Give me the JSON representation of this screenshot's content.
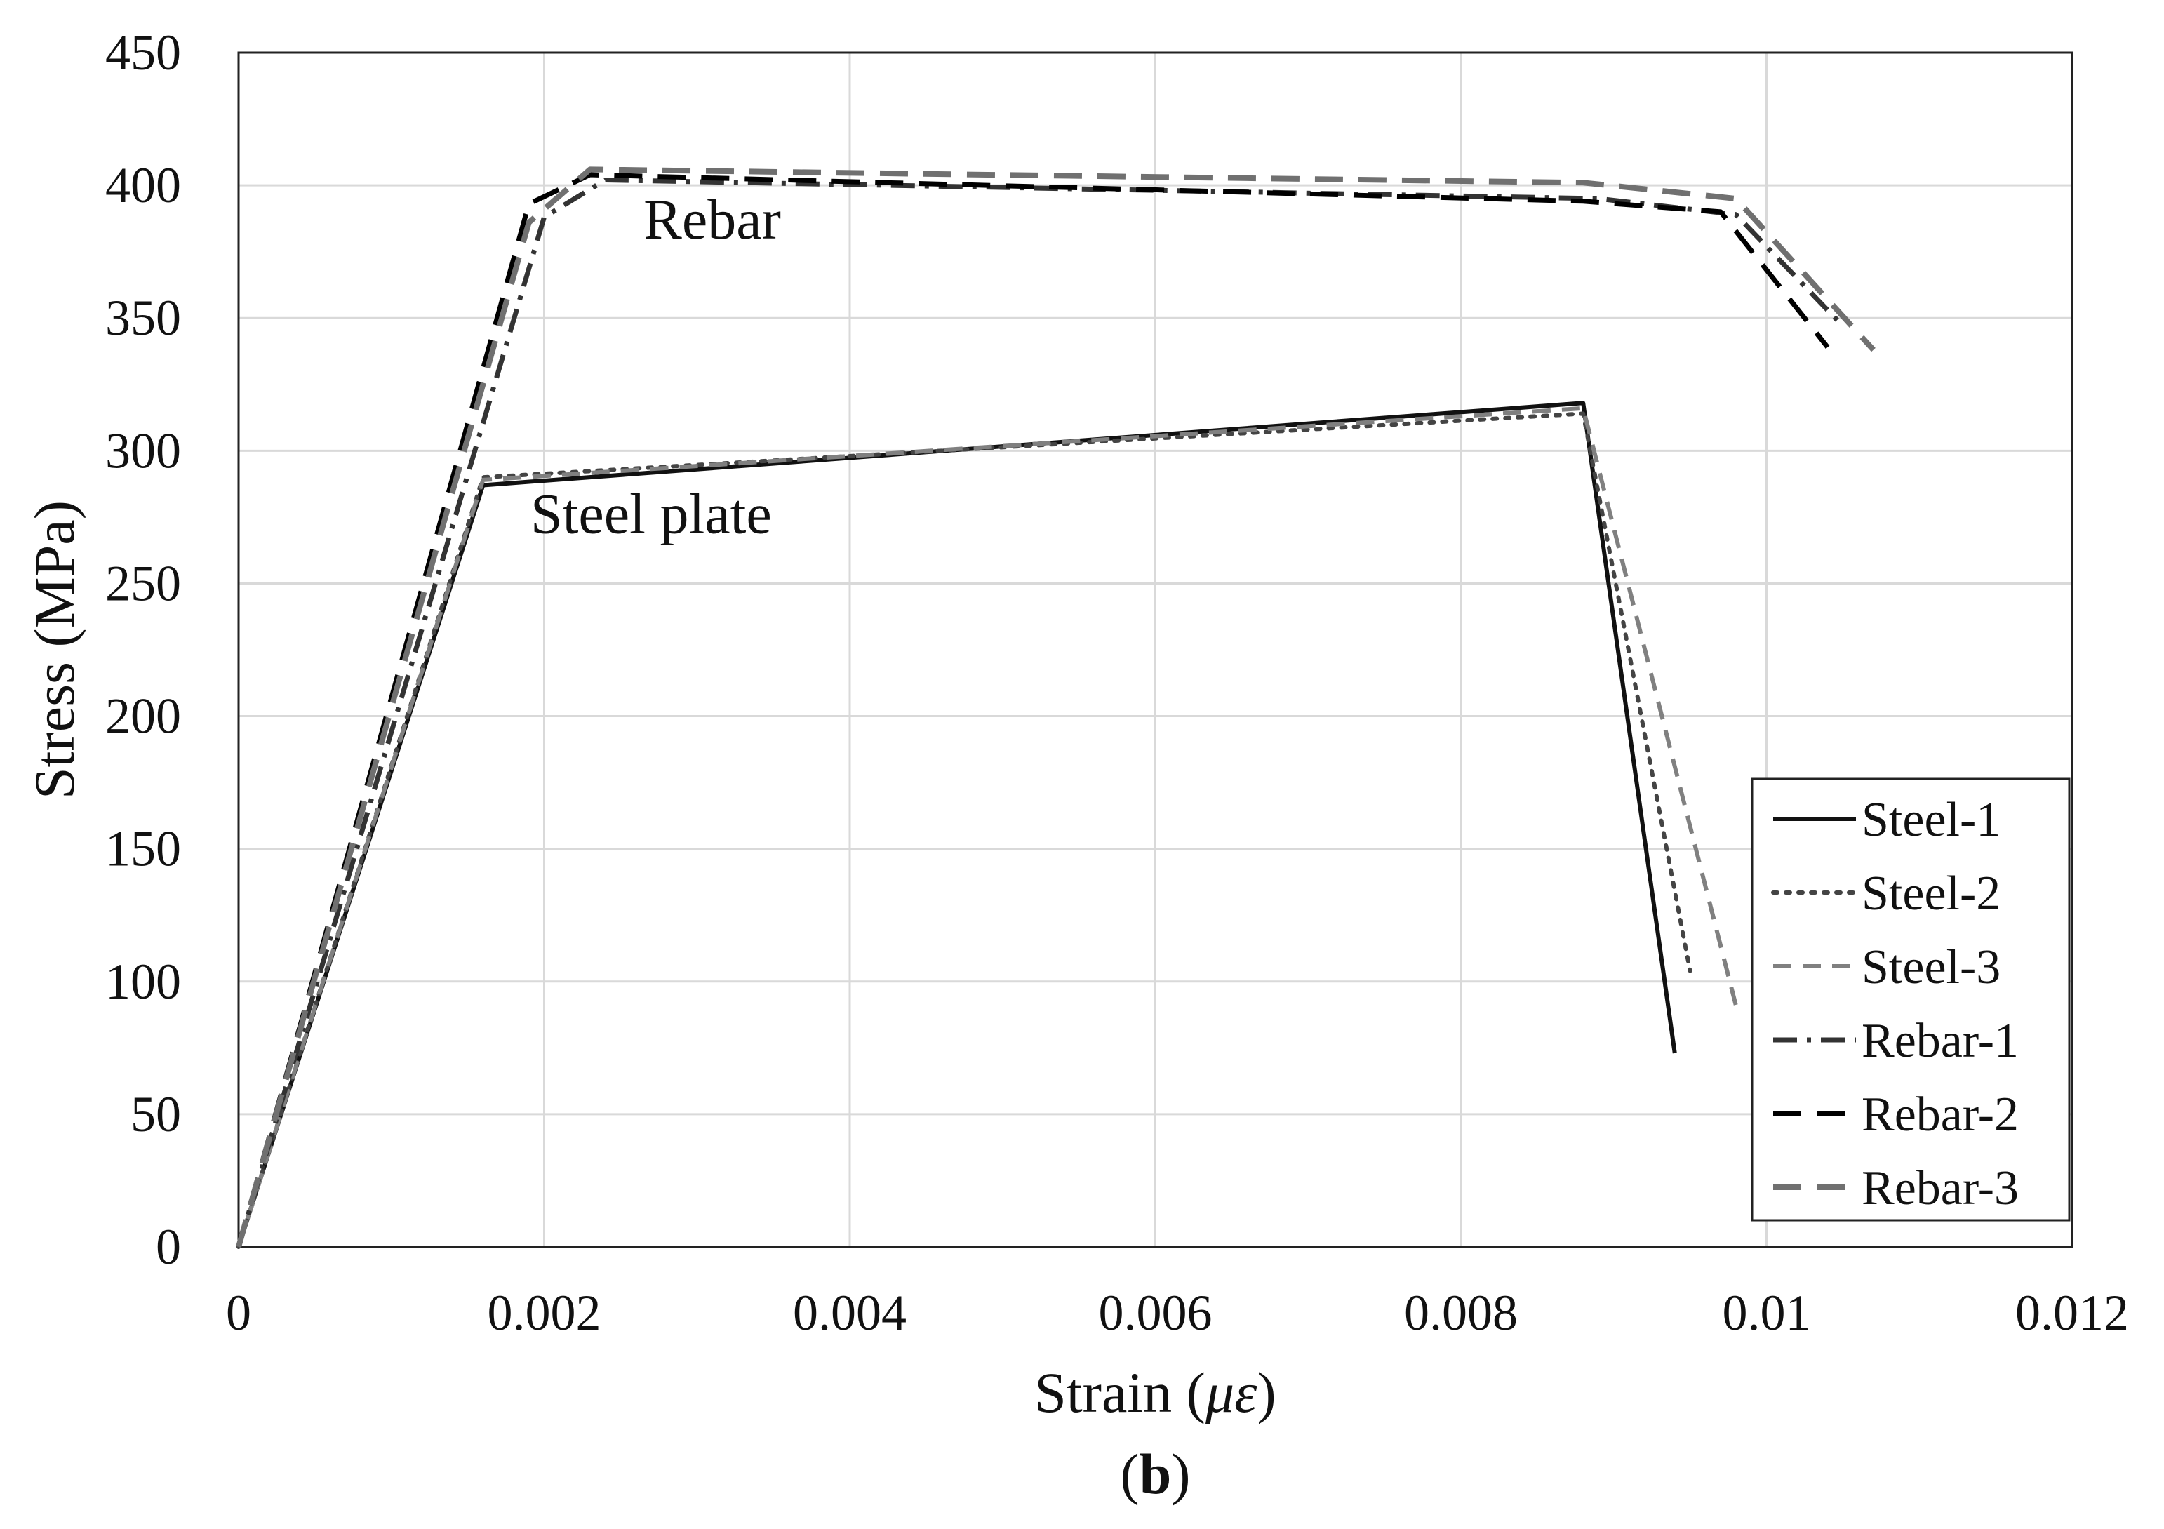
{
  "chart_data": {
    "type": "line",
    "title": "",
    "xlabel_prefix": "Strain (",
    "xlabel_unit": "με",
    "xlabel_suffix": ")",
    "ylabel": "Stress (MPa)",
    "xlim": [
      0,
      0.012
    ],
    "ylim": [
      0,
      450
    ],
    "x_ticks": [
      0,
      0.002,
      0.004,
      0.006,
      0.008,
      0.01,
      0.012
    ],
    "x_tick_labels": [
      "0",
      "0.002",
      "0.004",
      "0.006",
      "0.008",
      "0.01",
      "0.012"
    ],
    "y_ticks": [
      0,
      50,
      100,
      150,
      200,
      250,
      300,
      350,
      400,
      450
    ],
    "y_tick_labels": [
      "0",
      "50",
      "100",
      "150",
      "200",
      "250",
      "300",
      "350",
      "400",
      "450"
    ],
    "grid": true,
    "legend_position": "bottom-right",
    "annotations": [
      {
        "text": "Rebar",
        "x": 0.0031,
        "y": 380
      },
      {
        "text": "Steel plate",
        "x": 0.0027,
        "y": 269
      }
    ],
    "panel_label": {
      "open": "(",
      "letter": "b",
      "close": ")"
    },
    "series": [
      {
        "name": "Steel-1",
        "color": "#111111",
        "dash": "solid",
        "width": 6,
        "x": [
          0,
          0.0016,
          0.0088,
          0.0094
        ],
        "y": [
          0,
          287,
          318,
          73
        ]
      },
      {
        "name": "Steel-2",
        "color": "#444444",
        "dash": "dotted",
        "width": 6,
        "x": [
          0,
          0.0016,
          0.0088,
          0.0095
        ],
        "y": [
          0,
          290,
          314,
          104
        ]
      },
      {
        "name": "Steel-3",
        "color": "#808080",
        "dash": "dashed",
        "width": 6,
        "x": [
          0,
          0.0016,
          0.0088,
          0.0098
        ],
        "y": [
          0,
          289,
          316,
          91
        ]
      },
      {
        "name": "Rebar-1",
        "color": "#333333",
        "dash": "dashdot",
        "width": 7,
        "x": [
          0,
          0.002,
          0.0024,
          0.0089,
          0.0098,
          0.0105
        ],
        "y": [
          0,
          388,
          402,
          395,
          389,
          347
        ]
      },
      {
        "name": "Rebar-2",
        "color": "#000000",
        "dash": "longdash",
        "width": 7,
        "x": [
          0,
          0.0019,
          0.0023,
          0.0088,
          0.0097,
          0.0104
        ],
        "y": [
          0,
          393,
          404,
          394,
          390,
          339
        ]
      },
      {
        "name": "Rebar-3",
        "color": "#707070",
        "dash": "longdash",
        "width": 8,
        "x": [
          0,
          0.0019,
          0.0023,
          0.0088,
          0.0098,
          0.0107
        ],
        "y": [
          0,
          386,
          406,
          401,
          395,
          338
        ]
      }
    ]
  }
}
